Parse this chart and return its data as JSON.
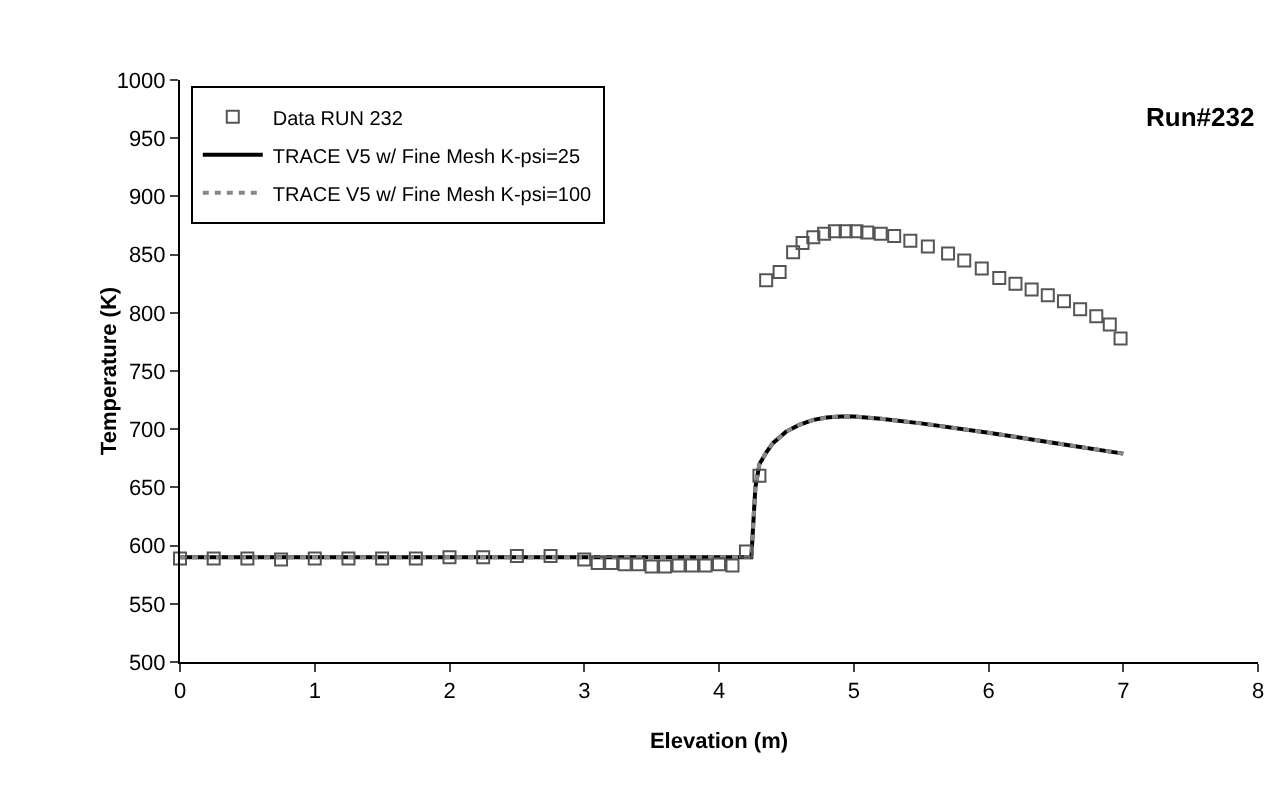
{
  "chart_data": {
    "type": "line",
    "xlabel": "Elevation (m)",
    "ylabel": "Temperature (K)",
    "xlim": [
      0,
      8
    ],
    "xticks": [
      0,
      1,
      2,
      3,
      4,
      5,
      6,
      7,
      8
    ],
    "ylim": [
      500,
      1000
    ],
    "yticks": [
      500,
      550,
      600,
      650,
      700,
      750,
      800,
      850,
      900,
      950,
      1000
    ],
    "grid": false,
    "legend": "top left",
    "annotations": [
      "Run#232"
    ],
    "series": [
      {
        "name": "Data RUN 232",
        "type": "scatter",
        "marker": "square",
        "color": "#555555",
        "x": [
          0,
          0.25,
          0.5,
          0.75,
          1,
          1.25,
          1.5,
          1.75,
          2,
          2.25,
          2.5,
          2.75,
          3,
          3.1,
          3.2,
          3.3,
          3.4,
          3.5,
          3.6,
          3.7,
          3.8,
          3.9,
          4,
          4.1,
          4.2,
          4.3,
          4.35,
          4.45,
          4.55,
          4.62,
          4.7,
          4.78,
          4.86,
          4.94,
          5.02,
          5.1,
          5.2,
          5.3,
          5.42,
          5.55,
          5.7,
          5.82,
          5.95,
          6.08,
          6.2,
          6.32,
          6.44,
          6.56,
          6.68,
          6.8,
          6.9,
          6.98
        ],
        "values": [
          589,
          589,
          589,
          588,
          589,
          589,
          589,
          589,
          590,
          590,
          591,
          591,
          588,
          585,
          585,
          584,
          584,
          582,
          582,
          583,
          583,
          583,
          584,
          583,
          595,
          660,
          828,
          835,
          852,
          860,
          865,
          868,
          870,
          870,
          870,
          869,
          868,
          866,
          862,
          857,
          851,
          845,
          838,
          830,
          825,
          820,
          815,
          810,
          803,
          797,
          790,
          778
        ]
      },
      {
        "name": "TRACE V5 w/ Fine Mesh K-psi=25",
        "color": "#000000",
        "line_style": "solid",
        "x": [
          0,
          1,
          2,
          3,
          4,
          4.24,
          4.27,
          4.3,
          4.35,
          4.4,
          4.5,
          4.6,
          4.7,
          4.8,
          4.9,
          5,
          5.2,
          5.5,
          6,
          6.5,
          7
        ],
        "values": [
          590,
          590,
          590,
          590,
          590,
          590,
          650,
          670,
          680,
          688,
          698,
          704,
          708,
          710,
          711,
          711,
          709,
          705,
          697,
          688,
          679
        ]
      },
      {
        "name": "TRACE V5 w/ Fine Mesh K-psi=100",
        "color": "#888888",
        "line_style": "dotted",
        "x": [
          0,
          1,
          2,
          3,
          4,
          4.24,
          4.27,
          4.3,
          4.35,
          4.4,
          4.5,
          4.6,
          4.7,
          4.8,
          4.9,
          5,
          5.2,
          5.5,
          6,
          6.5,
          7
        ],
        "values": [
          590,
          590,
          590,
          590,
          590,
          590,
          650,
          670,
          680,
          688,
          698,
          704,
          708,
          710,
          711,
          711,
          709,
          705,
          697,
          688,
          679
        ]
      }
    ]
  }
}
